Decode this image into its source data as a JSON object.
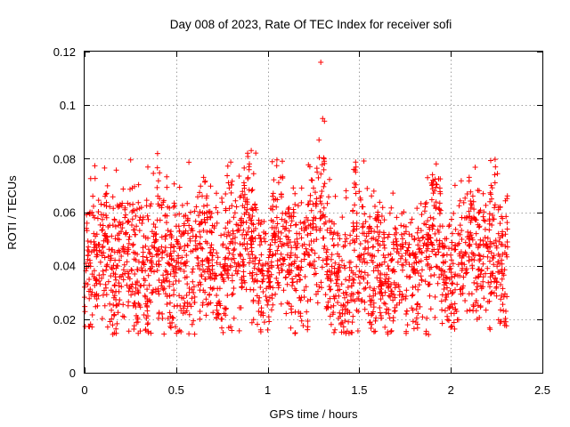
{
  "chart_data": {
    "type": "scatter",
    "title": "Day 008 of 2023, Rate Of TEC Index for receiver sofi",
    "xlabel": "GPS time / hours",
    "ylabel": "ROTI / TECUs",
    "xlim": [
      0,
      2.5
    ],
    "ylim": [
      0,
      0.12
    ],
    "x_ticks": [
      "0",
      "0.5",
      "1",
      "1.5",
      "2",
      "2.5"
    ],
    "x_tick_values": [
      0,
      0.5,
      1,
      1.5,
      2,
      2.5
    ],
    "y_ticks": [
      "0",
      "0.02",
      "0.04",
      "0.06",
      "0.08",
      "0.1",
      "0.12"
    ],
    "y_tick_values": [
      0,
      0.02,
      0.04,
      0.06,
      0.08,
      0.1,
      0.12
    ],
    "grid": true,
    "marker": "+",
    "color": "#ff0000",
    "series": [
      {
        "name": "ROTI",
        "x": [
          0.0,
          0.01,
          0.02,
          0.03,
          0.05,
          0.07,
          0.09,
          0.1,
          0.12,
          0.14,
          0.16,
          0.18,
          0.2,
          0.22,
          0.24,
          0.26,
          0.28,
          0.29,
          0.3,
          0.32,
          0.34,
          0.36,
          0.38,
          0.4,
          0.42,
          0.43,
          0.45,
          0.47,
          0.49,
          0.51,
          0.53,
          0.55,
          0.57,
          0.59,
          0.61,
          0.63,
          0.65,
          0.67,
          0.69,
          0.71,
          0.73,
          0.75,
          0.77,
          0.79,
          0.81,
          0.83,
          0.85,
          0.87,
          0.89,
          0.9,
          0.91,
          0.92,
          0.93,
          0.95,
          0.97,
          0.99,
          1.0,
          1.01,
          1.03,
          1.05,
          1.07,
          1.08,
          1.1,
          1.12,
          1.14,
          1.16,
          1.18,
          1.2,
          1.22,
          1.23,
          1.25,
          1.27,
          1.28,
          1.29,
          1.3,
          1.31,
          1.32,
          1.34,
          1.36,
          1.38,
          1.4,
          1.42,
          1.44,
          1.46,
          1.47,
          1.48,
          1.5,
          1.52,
          1.54,
          1.56,
          1.58,
          1.6,
          1.62,
          1.64,
          1.66,
          1.68,
          1.7,
          1.72,
          1.74,
          1.76,
          1.78,
          1.8,
          1.82,
          1.84,
          1.86,
          1.88,
          1.9,
          1.92,
          1.94,
          1.96,
          1.98,
          2.0,
          2.02,
          2.04,
          2.06,
          2.08,
          2.1,
          2.12,
          2.14,
          2.16,
          2.18,
          2.2,
          2.22,
          2.24,
          2.26,
          2.28,
          2.3,
          2.31
        ],
        "y": [
          0.032,
          0.059,
          0.047,
          0.041,
          0.052,
          0.044,
          0.063,
          0.038,
          0.067,
          0.042,
          0.028,
          0.05,
          0.036,
          0.058,
          0.046,
          0.069,
          0.033,
          0.02,
          0.057,
          0.045,
          0.025,
          0.039,
          0.052,
          0.066,
          0.047,
          0.031,
          0.044,
          0.021,
          0.036,
          0.048,
          0.028,
          0.041,
          0.055,
          0.034,
          0.062,
          0.048,
          0.073,
          0.058,
          0.045,
          0.037,
          0.026,
          0.02,
          0.043,
          0.069,
          0.053,
          0.062,
          0.057,
          0.071,
          0.082,
          0.078,
          0.083,
          0.049,
          0.063,
          0.026,
          0.037,
          0.052,
          0.016,
          0.044,
          0.067,
          0.058,
          0.073,
          0.079,
          0.051,
          0.043,
          0.061,
          0.034,
          0.027,
          0.048,
          0.057,
          0.077,
          0.069,
          0.075,
          0.087,
          0.116,
          0.095,
          0.094,
          0.045,
          0.031,
          0.025,
          0.035,
          0.018,
          0.028,
          0.019,
          0.015,
          0.076,
          0.075,
          0.038,
          0.062,
          0.051,
          0.044,
          0.026,
          0.059,
          0.033,
          0.043,
          0.022,
          0.038,
          0.05,
          0.029,
          0.047,
          0.036,
          0.056,
          0.041,
          0.031,
          0.045,
          0.062,
          0.033,
          0.074,
          0.078,
          0.069,
          0.041,
          0.021,
          0.017,
          0.036,
          0.052,
          0.058,
          0.045,
          0.073,
          0.066,
          0.031,
          0.048,
          0.057,
          0.039,
          0.07,
          0.074,
          0.052,
          0.035,
          0.019,
          0.047
        ],
        "point_count_approx": 2300
      }
    ]
  }
}
